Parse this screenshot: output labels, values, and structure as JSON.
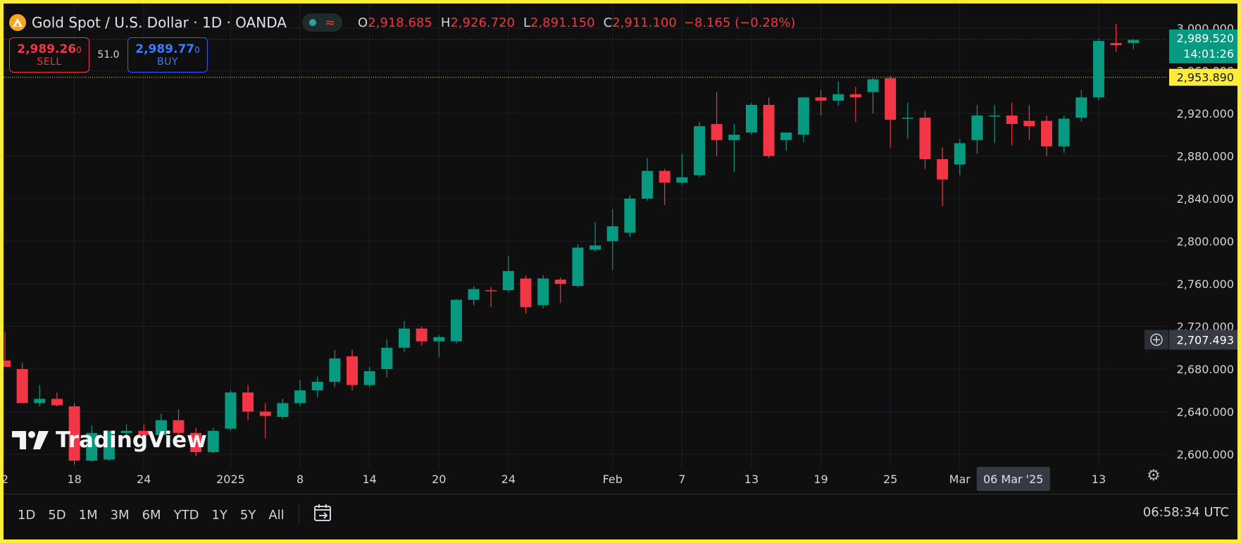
{
  "header": {
    "symbol_title": "Gold Spot / U.S. Dollar · 1D · OANDA",
    "ohlc": {
      "open_label": "O",
      "open": "2,918.685",
      "high_label": "H",
      "high": "2,926.720",
      "low_label": "L",
      "low": "2,891.150",
      "close_label": "C",
      "close": "2,911.100"
    },
    "change": "−8.165 (−0.28%)"
  },
  "trade": {
    "sell_price": "2,989.26",
    "sell_price_small": "0",
    "sell_label": "SELL",
    "spread": "51.0",
    "buy_price": "2,989.77",
    "buy_price_small": "0",
    "buy_label": "BUY"
  },
  "watermark": "TradingView",
  "range_buttons": [
    "1D",
    "5D",
    "1M",
    "3M",
    "6M",
    "YTD",
    "1Y",
    "5Y",
    "All"
  ],
  "clock": "06:58:34 UTC",
  "colors": {
    "up": "#089981",
    "down": "#f23645",
    "background": "#0f0f0f",
    "grid": "#1c1f26",
    "axis_text": "#d1d4dc",
    "frame": "#ffeb3b",
    "price_line": "#089981",
    "alert_line": "#ffeb3b"
  },
  "icons": [
    "gold-coin-logo-icon",
    "status-dot-icon",
    "wave-icon",
    "date-range-icon",
    "settings-icon",
    "crosshair-plus-icon"
  ],
  "chart_data": {
    "type": "candlestick",
    "ylim": [
      2590,
      3010
    ],
    "y_ticks": [
      2600,
      2640,
      2680,
      2720,
      2760,
      2800,
      2840,
      2880,
      2920,
      2960,
      3000
    ],
    "y_tick_labels": [
      "2,600.000",
      "2,640.000",
      "2,680.000",
      "2,720.000",
      "2,760.000",
      "2,800.000",
      "2,840.000",
      "2,880.000",
      "2,920.000",
      "2,960.000",
      "3,000.000"
    ],
    "x_ticks": [
      {
        "index": 0,
        "label": "2"
      },
      {
        "index": 4,
        "label": "18"
      },
      {
        "index": 8,
        "label": "24"
      },
      {
        "index": 13,
        "label": "2025"
      },
      {
        "index": 17,
        "label": "8"
      },
      {
        "index": 21,
        "label": "14"
      },
      {
        "index": 25,
        "label": "20"
      },
      {
        "index": 29,
        "label": "24"
      },
      {
        "index": 35,
        "label": "Feb"
      },
      {
        "index": 39,
        "label": "7"
      },
      {
        "index": 43,
        "label": "13"
      },
      {
        "index": 47,
        "label": "19"
      },
      {
        "index": 51,
        "label": "25"
      },
      {
        "index": 55,
        "label": "Mar"
      },
      {
        "index": 63,
        "label": "13"
      }
    ],
    "crosshair_index": 58,
    "crosshair_label": "06 Mar '25",
    "candles": [
      [
        2688,
        2715,
        2683,
        2682
      ],
      [
        2680,
        2686,
        2648,
        2648
      ],
      [
        2648,
        2665,
        2645,
        2652
      ],
      [
        2652,
        2658,
        2645,
        2646
      ],
      [
        2645,
        2648,
        2590,
        2594
      ],
      [
        2594,
        2627,
        2593,
        2620
      ],
      [
        2595,
        2622,
        2594,
        2622
      ],
      [
        2620,
        2628,
        2615,
        2622
      ],
      [
        2622,
        2628,
        2615,
        2618
      ],
      [
        2618,
        2638,
        2615,
        2632
      ],
      [
        2632,
        2642,
        2618,
        2620
      ],
      [
        2620,
        2625,
        2598,
        2602
      ],
      [
        2602,
        2625,
        2601,
        2622
      ],
      [
        2624,
        2660,
        2622,
        2658
      ],
      [
        2658,
        2665,
        2632,
        2640
      ],
      [
        2640,
        2648,
        2615,
        2636
      ],
      [
        2635,
        2652,
        2633,
        2648
      ],
      [
        2648,
        2670,
        2645,
        2660
      ],
      [
        2660,
        2673,
        2654,
        2668
      ],
      [
        2668,
        2698,
        2663,
        2690
      ],
      [
        2692,
        2698,
        2660,
        2665
      ],
      [
        2665,
        2682,
        2663,
        2678
      ],
      [
        2680,
        2708,
        2672,
        2700
      ],
      [
        2700,
        2725,
        2696,
        2718
      ],
      [
        2718,
        2720,
        2702,
        2706
      ],
      [
        2706,
        2712,
        2691,
        2710
      ],
      [
        2706,
        2746,
        2704,
        2745
      ],
      [
        2745,
        2758,
        2740,
        2755
      ],
      [
        2754,
        2757,
        2738,
        2753
      ],
      [
        2754,
        2786,
        2752,
        2772
      ],
      [
        2765,
        2768,
        2732,
        2738
      ],
      [
        2740,
        2768,
        2737,
        2765
      ],
      [
        2764,
        2766,
        2742,
        2760
      ],
      [
        2758,
        2797,
        2757,
        2794
      ],
      [
        2792,
        2818,
        2790,
        2796
      ],
      [
        2800,
        2830,
        2773,
        2814
      ],
      [
        2808,
        2843,
        2804,
        2840
      ],
      [
        2840,
        2878,
        2838,
        2866
      ],
      [
        2866,
        2868,
        2834,
        2855
      ],
      [
        2855,
        2882,
        2853,
        2860
      ],
      [
        2862,
        2912,
        2860,
        2908
      ],
      [
        2910,
        2940,
        2880,
        2895
      ],
      [
        2895,
        2910,
        2865,
        2900
      ],
      [
        2902,
        2930,
        2900,
        2928
      ],
      [
        2928,
        2935,
        2878,
        2880
      ],
      [
        2895,
        2902,
        2885,
        2902
      ],
      [
        2900,
        2935,
        2893,
        2935
      ],
      [
        2935,
        2942,
        2918,
        2932
      ],
      [
        2932,
        2950,
        2927,
        2938
      ],
      [
        2938,
        2945,
        2912,
        2935
      ],
      [
        2940,
        2953,
        2920,
        2952
      ],
      [
        2953,
        2955,
        2888,
        2914
      ],
      [
        2915,
        2930,
        2896,
        2916
      ],
      [
        2916,
        2922,
        2868,
        2877
      ],
      [
        2877,
        2888,
        2833,
        2858
      ],
      [
        2872,
        2896,
        2862,
        2892
      ],
      [
        2895,
        2928,
        2882,
        2918
      ],
      [
        2917,
        2928,
        2892,
        2918
      ],
      [
        2918,
        2930,
        2890,
        2910
      ],
      [
        2913,
        2928,
        2895,
        2908
      ],
      [
        2913,
        2918,
        2880,
        2889
      ],
      [
        2889,
        2918,
        2883,
        2915
      ],
      [
        2916,
        2942,
        2912,
        2935
      ],
      [
        2935,
        2990,
        2932,
        2988
      ],
      [
        2986,
        3004,
        2978,
        2984
      ],
      [
        2986,
        2990,
        2980,
        2989
      ]
    ],
    "price_labels": {
      "current_price": "2,989.520",
      "countdown": "14:01:26",
      "alert_price": "2,953.890",
      "hover_price": "2,707.493"
    },
    "current_price_value": 2989.52,
    "alert_price_value": 2953.89,
    "hover_price_value": 2707.493,
    "grid": true
  }
}
